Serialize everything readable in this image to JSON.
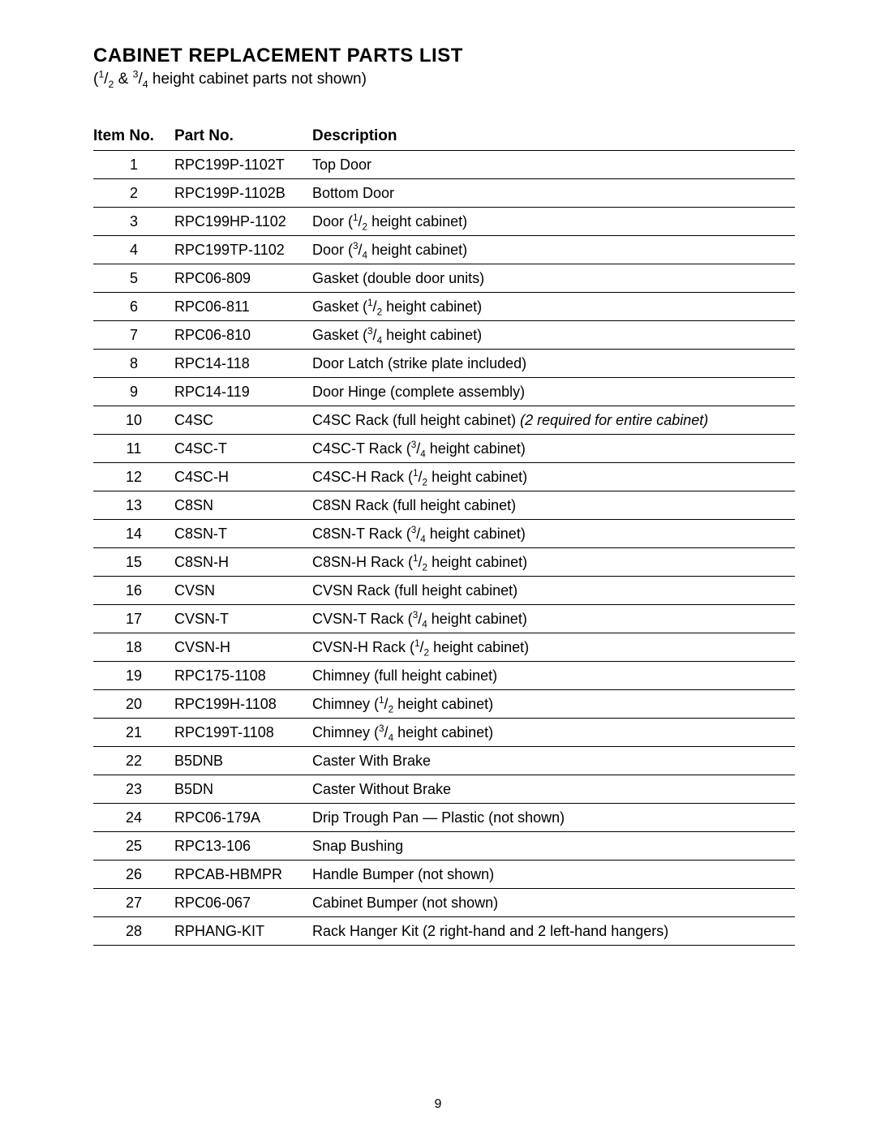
{
  "title": "CABINET REPLACEMENT PARTS LIST",
  "subtitle_html": "(<span class='sup'>1</span>/<span class='sub'>2</span> & <span class='sup'>3</span>/<span class='sub'>4</span> height cabinet parts not shown)",
  "columns": {
    "item": "Item No.",
    "part": "Part No.",
    "desc": "Description"
  },
  "page_number": "9",
  "rows": [
    {
      "item": "1",
      "part": "RPC199P-1102T",
      "desc_html": "Top Door"
    },
    {
      "item": "2",
      "part": "RPC199P-1102B",
      "desc_html": "Bottom Door"
    },
    {
      "item": "3",
      "part": "RPC199HP-1102",
      "desc_html": "Door (<span class='sup'>1</span>/<span class='sub'>2</span> height cabinet)"
    },
    {
      "item": "4",
      "part": "RPC199TP-1102",
      "desc_html": "Door (<span class='sup'>3</span>/<span class='sub'>4</span> height cabinet)"
    },
    {
      "item": "5",
      "part": "RPC06-809",
      "desc_html": "Gasket (double door units)"
    },
    {
      "item": "6",
      "part": "RPC06-811",
      "desc_html": "Gasket (<span class='sup'>1</span>/<span class='sub'>2</span> height cabinet)"
    },
    {
      "item": "7",
      "part": "RPC06-810",
      "desc_html": "Gasket (<span class='sup'>3</span>/<span class='sub'>4</span> height cabinet)"
    },
    {
      "item": "8",
      "part": "RPC14-118",
      "desc_html": "Door Latch (strike plate included)"
    },
    {
      "item": "9",
      "part": "RPC14-119",
      "desc_html": "Door Hinge (complete assembly)"
    },
    {
      "item": "10",
      "part": "C4SC",
      "desc_html": "C4SC Rack (full height cabinet) <span class='ital'>(2 required for entire cabinet)</span>"
    },
    {
      "item": "11",
      "part": "C4SC-T",
      "desc_html": "C4SC-T Rack (<span class='sup'>3</span>/<span class='sub'>4</span> height cabinet)"
    },
    {
      "item": "12",
      "part": "C4SC-H",
      "desc_html": "C4SC-H Rack (<span class='sup'>1</span>/<span class='sub'>2</span> height cabinet)"
    },
    {
      "item": "13",
      "part": "C8SN",
      "desc_html": "C8SN Rack (full height cabinet)"
    },
    {
      "item": "14",
      "part": "C8SN-T",
      "desc_html": "C8SN-T Rack (<span class='sup'>3</span>/<span class='sub'>4</span> height cabinet)"
    },
    {
      "item": "15",
      "part": "C8SN-H",
      "desc_html": "C8SN-H Rack (<span class='sup'>1</span>/<span class='sub'>2</span> height cabinet)"
    },
    {
      "item": "16",
      "part": "CVSN",
      "desc_html": "CVSN Rack (full height cabinet)"
    },
    {
      "item": "17",
      "part": "CVSN-T",
      "desc_html": "CVSN-T Rack (<span class='sup'>3</span>/<span class='sub'>4</span> height cabinet)"
    },
    {
      "item": "18",
      "part": "CVSN-H",
      "desc_html": "CVSN-H Rack (<span class='sup'>1</span>/<span class='sub'>2</span> height cabinet)"
    },
    {
      "item": "19",
      "part": "RPC175-1108",
      "desc_html": "Chimney (full height cabinet)"
    },
    {
      "item": "20",
      "part": "RPC199H-1108",
      "desc_html": "Chimney (<span class='sup'>1</span>/<span class='sub'>2</span> height cabinet)"
    },
    {
      "item": "21",
      "part": "RPC199T-1108",
      "desc_html": "Chimney (<span class='sup'>3</span>/<span class='sub'>4</span> height cabinet)"
    },
    {
      "item": "22",
      "part": "B5DNB",
      "desc_html": "Caster With Brake"
    },
    {
      "item": "23",
      "part": "B5DN",
      "desc_html": "Caster Without Brake"
    },
    {
      "item": "24",
      "part": "RPC06-179A",
      "desc_html": "Drip Trough Pan — Plastic (not shown)"
    },
    {
      "item": "25",
      "part": "RPC13-106",
      "desc_html": "Snap Bushing"
    },
    {
      "item": "26",
      "part": "RPCAB-HBMPR",
      "desc_html": "Handle Bumper (not shown)"
    },
    {
      "item": "27",
      "part": "RPC06-067",
      "desc_html": "Cabinet Bumper (not shown)"
    },
    {
      "item": "28",
      "part": "RPHANG-KIT",
      "desc_html": "Rack Hanger Kit (2 right-hand and 2 left-hand hangers)"
    }
  ]
}
